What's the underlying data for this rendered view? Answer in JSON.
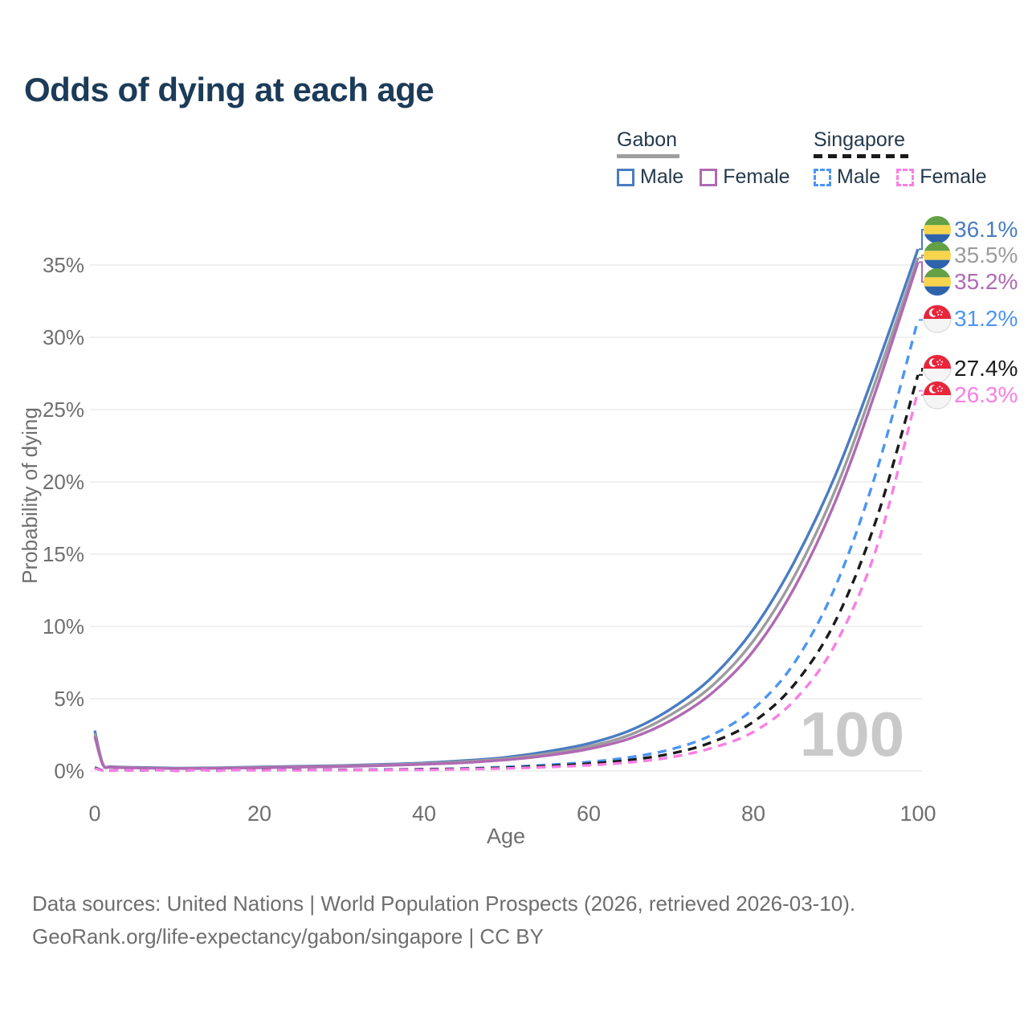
{
  "title": "Odds of dying at each age",
  "legend": {
    "groups": [
      {
        "label": "Gabon",
        "line_style": "solid",
        "underline_color": "#9e9e9e",
        "items": [
          {
            "label": "Male",
            "color": "#4a7cc2"
          },
          {
            "label": "Female",
            "color": "#b06ab3"
          }
        ]
      },
      {
        "label": "Singapore",
        "line_style": "dashed",
        "underline_color": "#1a1a1a",
        "items": [
          {
            "label": "Male",
            "color": "#4d95f2"
          },
          {
            "label": "Female",
            "color": "#fb7ee3"
          }
        ]
      }
    ]
  },
  "chart_data": {
    "type": "line",
    "title": "Odds of dying at each age",
    "xlabel": "Age",
    "ylabel": "Probability of dying",
    "xlim": [
      0,
      100
    ],
    "ylim_pct": [
      0,
      37
    ],
    "x_ticks": [
      "0",
      "20",
      "40",
      "60",
      "80",
      "100"
    ],
    "x_tick_values": [
      0,
      20,
      40,
      60,
      80,
      100
    ],
    "y_ticks": [
      "0%",
      "5%",
      "10%",
      "15%",
      "20%",
      "25%",
      "30%",
      "35%"
    ],
    "y_tick_values": [
      0,
      5,
      10,
      15,
      20,
      25,
      30,
      35
    ],
    "grid": "horizontal",
    "gridline_color": "#ececec",
    "tick_color": "#6f6f6f",
    "watermark": "100",
    "watermark_color": "#c9c9c9",
    "ages": [
      0,
      1,
      2,
      5,
      10,
      15,
      20,
      25,
      30,
      35,
      40,
      45,
      50,
      55,
      60,
      65,
      70,
      75,
      80,
      85,
      90,
      95,
      100
    ],
    "series": [
      {
        "name": "Gabon Male",
        "country": "Gabon",
        "sex": "Male",
        "flag": "gabon",
        "color": "#4a7cc2",
        "dashed": false,
        "end_label": "36.1%",
        "end_value": 36.1,
        "values": [
          2.8,
          0.45,
          0.3,
          0.25,
          0.2,
          0.23,
          0.28,
          0.33,
          0.38,
          0.46,
          0.56,
          0.72,
          0.95,
          1.35,
          1.9,
          2.8,
          4.3,
          6.5,
          9.8,
          14.5,
          20.5,
          28.0,
          36.1
        ]
      },
      {
        "name": "Gabon Both sexes",
        "country": "Gabon",
        "sex": "Both",
        "flag": "gabon",
        "color": "#9c9c9c",
        "dashed": false,
        "end_label": "35.5%",
        "end_value": 35.5,
        "values": [
          2.6,
          0.42,
          0.28,
          0.23,
          0.18,
          0.21,
          0.25,
          0.3,
          0.35,
          0.42,
          0.51,
          0.65,
          0.86,
          1.2,
          1.7,
          2.5,
          3.9,
          5.9,
          9.0,
          13.5,
          19.5,
          27.2,
          35.5
        ]
      },
      {
        "name": "Gabon Female",
        "country": "Gabon",
        "sex": "Female",
        "flag": "gabon",
        "color": "#b06ab3",
        "dashed": false,
        "end_label": "35.2%",
        "end_value": 35.2,
        "values": [
          2.4,
          0.4,
          0.26,
          0.21,
          0.17,
          0.19,
          0.22,
          0.27,
          0.31,
          0.38,
          0.46,
          0.58,
          0.77,
          1.07,
          1.52,
          2.25,
          3.5,
          5.4,
          8.3,
          12.7,
          18.7,
          26.5,
          35.2
        ]
      },
      {
        "name": "Singapore Male",
        "country": "Singapore",
        "sex": "Male",
        "flag": "singapore",
        "color": "#4d95f2",
        "dashed": true,
        "end_label": "31.2%",
        "end_value": 31.2,
        "values": [
          0.25,
          0.04,
          0.03,
          0.02,
          0.02,
          0.04,
          0.06,
          0.07,
          0.08,
          0.1,
          0.13,
          0.18,
          0.28,
          0.42,
          0.62,
          0.95,
          1.5,
          2.5,
          4.3,
          7.5,
          12.8,
          20.8,
          31.2
        ]
      },
      {
        "name": "Singapore Both sexes",
        "country": "Singapore",
        "sex": "Both",
        "flag": "singapore",
        "color": "#1a1a1a",
        "dashed": true,
        "end_label": "27.4%",
        "end_value": 27.4,
        "values": [
          0.22,
          0.035,
          0.025,
          0.02,
          0.015,
          0.03,
          0.05,
          0.06,
          0.07,
          0.08,
          0.11,
          0.15,
          0.23,
          0.34,
          0.5,
          0.76,
          1.2,
          2.0,
          3.4,
          6.0,
          10.4,
          17.5,
          27.4
        ]
      },
      {
        "name": "Singapore Female",
        "country": "Singapore",
        "sex": "Female",
        "flag": "singapore",
        "color": "#fb7ee3",
        "dashed": true,
        "end_label": "26.3%",
        "end_value": 26.3,
        "values": [
          0.18,
          0.03,
          0.02,
          0.015,
          0.012,
          0.02,
          0.03,
          0.04,
          0.05,
          0.06,
          0.08,
          0.12,
          0.18,
          0.27,
          0.4,
          0.6,
          0.95,
          1.6,
          2.7,
          4.9,
          8.8,
          15.5,
          26.3
        ]
      }
    ],
    "flag_colors": {
      "gabon": {
        "green": "#63a046",
        "yellow": "#f6d44d",
        "blue": "#2e63ac"
      },
      "singapore": {
        "red": "#e8253a",
        "white": "#f5f5f5",
        "border": "#d4d4d4"
      }
    }
  },
  "footer": {
    "line1": "Data sources: United Nations | World Population Prospects (2026, retrieved 2026-03-10).",
    "line2": "GeoRank.org/life-expectancy/gabon/singapore | CC BY"
  }
}
